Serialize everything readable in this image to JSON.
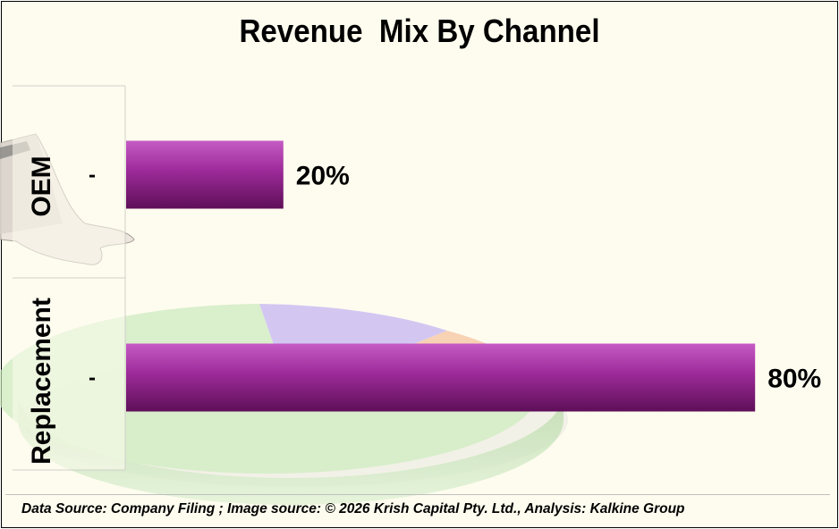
{
  "chart_data": {
    "type": "bar",
    "orientation": "horizontal",
    "title": "Revenue  Mix By Channel",
    "categories": [
      "OEM",
      "Replacement"
    ],
    "values": [
      20,
      80
    ],
    "value_labels": [
      "20%",
      "80%"
    ],
    "tick_marks": [
      "-",
      "-"
    ],
    "xlim": [
      0,
      100
    ],
    "unit": "%",
    "legend": "none",
    "grid": false
  },
  "colors": {
    "bar_top": "#c55bc4",
    "bar_mid": "#9c2a98",
    "bar_bottom": "#5e0f58",
    "background": "#fefcef",
    "pie_green": "#bfe6ad",
    "pie_purple": "#b9a6f2",
    "pie_orange": "#f2b58d"
  },
  "background_image": {
    "elements": [
      "hand-pointing-icon",
      "pie-chart-3d-icon"
    ]
  },
  "footer": {
    "text": "Data Source: Company Filing ; Image source: © 2026 Krish Capital Pty. Ltd., Analysis: Kalkine Group"
  }
}
